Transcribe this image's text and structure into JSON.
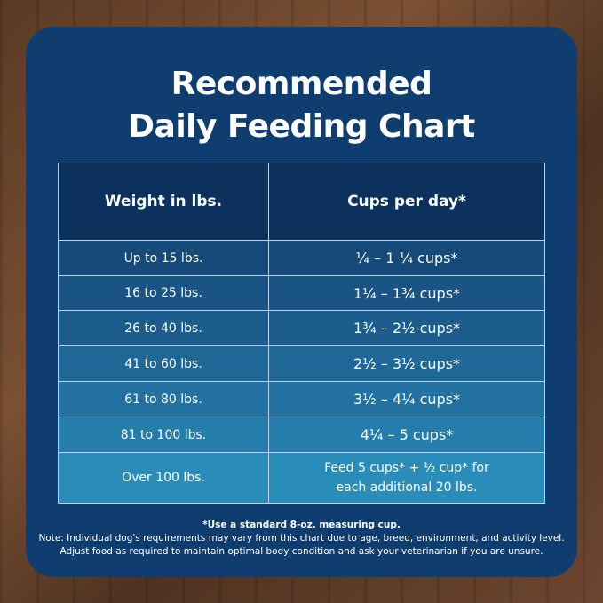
{
  "title": {
    "lines": [
      "Recommended",
      "Daily Feeding Chart"
    ]
  },
  "table": {
    "header": [
      "Weight in lbs.",
      "Cups per day*"
    ],
    "rows": [
      {
        "weight": "Up to 15 lbs.",
        "cups": [
          "¼ – 1 ¼ cups*"
        ]
      },
      {
        "weight": "16 to 25 lbs.",
        "cups": [
          "1¼ – 1¾  cups*"
        ]
      },
      {
        "weight": "26 to 40 lbs.",
        "cups": [
          "1¾ – 2½ cups*"
        ]
      },
      {
        "weight": "41 to 60 lbs.",
        "cups": [
          "2½ – 3½ cups*"
        ]
      },
      {
        "weight": "61 to 80 lbs.",
        "cups": [
          "3½ – 4¼ cups*"
        ]
      },
      {
        "weight": "81 to 100 lbs.",
        "cups": [
          "4¼ – 5 cups*"
        ]
      },
      {
        "weight": "Over 100 lbs.",
        "cups": [
          "Feed 5 cups* + ½ cup* for",
          "each additional 20 lbs."
        ]
      }
    ]
  },
  "notes": [
    "*Use a standard 8-oz. measuring cup.",
    "Note: Individual dog's requirements may vary from this chart due to age, breed, environment, and activity level.",
    "Adjust food as required to maintain optimal body condition and ask your veterinarian if you are unsure."
  ]
}
